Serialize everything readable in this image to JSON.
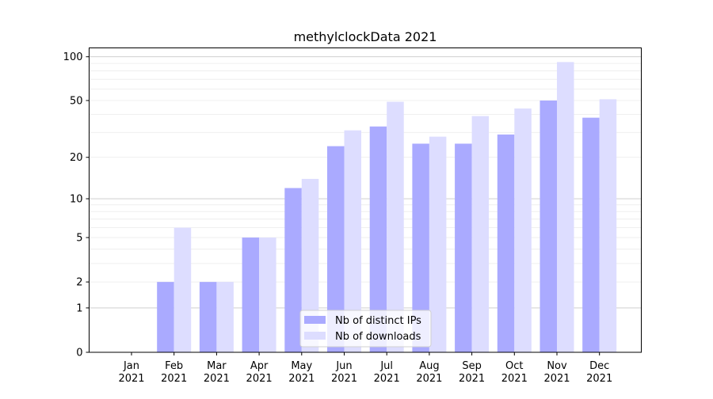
{
  "chart_data": {
    "type": "bar",
    "title": "methylclockData 2021",
    "xlabel": "",
    "ylabel": "",
    "yscale": "log10(1+x)",
    "ylim": [
      0,
      115
    ],
    "yticks": [
      0,
      1,
      2,
      5,
      10,
      20,
      50,
      100
    ],
    "ytick_labels": [
      "0",
      "1",
      "2",
      "5",
      "10",
      "20",
      "50",
      "100"
    ],
    "grid": true,
    "legend_position": "lower-center",
    "categories": [
      "Jan\n2021",
      "Feb\n2021",
      "Mar\n2021",
      "Apr\n2021",
      "May\n2021",
      "Jun\n2021",
      "Jul\n2021",
      "Aug\n2021",
      "Sep\n2021",
      "Oct\n2021",
      "Nov\n2021",
      "Dec\n2021"
    ],
    "category_lines": [
      [
        "Jan",
        "2021"
      ],
      [
        "Feb",
        "2021"
      ],
      [
        "Mar",
        "2021"
      ],
      [
        "Apr",
        "2021"
      ],
      [
        "May",
        "2021"
      ],
      [
        "Jun",
        "2021"
      ],
      [
        "Jul",
        "2021"
      ],
      [
        "Aug",
        "2021"
      ],
      [
        "Sep",
        "2021"
      ],
      [
        "Oct",
        "2021"
      ],
      [
        "Nov",
        "2021"
      ],
      [
        "Dec",
        "2021"
      ]
    ],
    "series": [
      {
        "name": "Nb of distinct IPs",
        "color": "#aaaaff",
        "values": [
          0,
          2,
          2,
          5,
          12,
          24,
          33,
          25,
          25,
          29,
          50,
          38
        ]
      },
      {
        "name": "Nb of downloads",
        "color": "#ddddff",
        "values": [
          0,
          6,
          2,
          5,
          14,
          31,
          49,
          28,
          39,
          44,
          92,
          51
        ]
      }
    ]
  }
}
